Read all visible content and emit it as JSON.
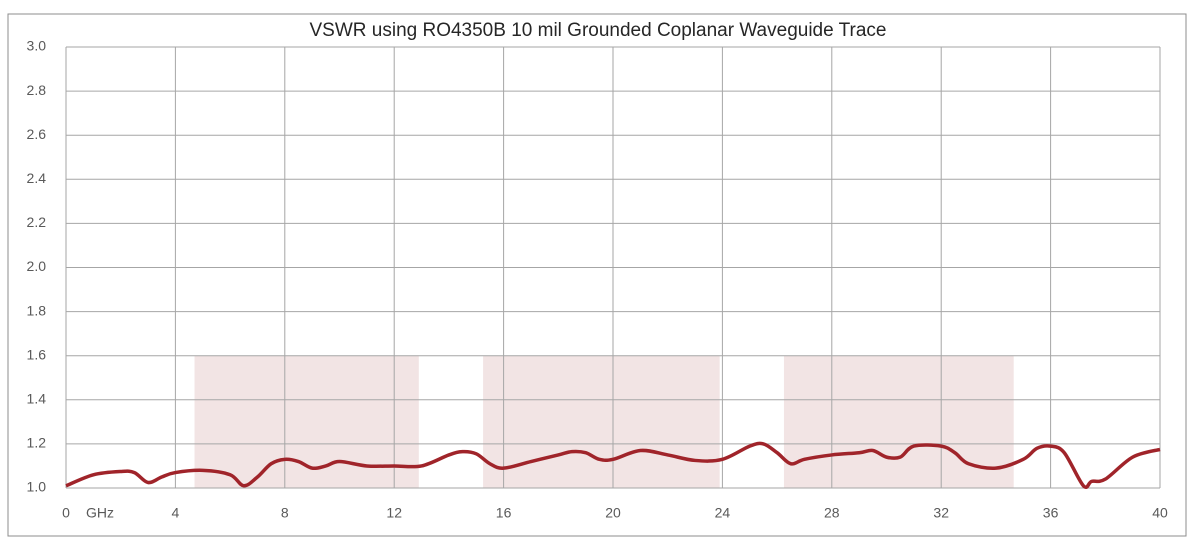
{
  "chart_data": {
    "type": "line",
    "title": "VSWR using RO4350B 10 mil Grounded Coplanar Waveguide Trace",
    "x_unit": "GHz",
    "xlim": [
      0,
      40
    ],
    "xticks": [
      0,
      4,
      8,
      12,
      16,
      20,
      24,
      28,
      32,
      36,
      40
    ],
    "ylim": [
      1,
      3
    ],
    "yticks": [
      {
        "value": 1,
        "label": "1.0"
      },
      1.2,
      1.4,
      1.6,
      1.8,
      {
        "value": 2,
        "label": "2.0"
      },
      2.2,
      2.4,
      2.6,
      2.8,
      {
        "value": 3,
        "label": "3.0"
      }
    ],
    "grid": true,
    "bands": {
      "color": "#f2e4e4",
      "top": 1.6,
      "ranges": [
        [
          4.7,
          12.9
        ],
        [
          15.25,
          23.9
        ],
        [
          26.25,
          34.65
        ]
      ]
    },
    "series": [
      {
        "color": "#a0242a",
        "x": [
          0,
          1,
          2,
          2.5,
          3,
          3.5,
          4,
          5,
          6,
          6.5,
          7,
          7.5,
          8,
          8.5,
          9,
          9.5,
          10,
          11,
          12,
          13,
          14,
          14.5,
          15,
          15.5,
          16,
          17,
          18,
          18.5,
          19,
          19.5,
          20,
          21,
          22,
          23,
          24,
          25,
          25.5,
          26,
          26.5,
          27,
          28,
          29,
          29.5,
          30,
          30.5,
          31,
          32,
          32.5,
          33,
          34,
          35,
          35.5,
          36,
          36.5,
          37.2,
          37.5,
          38,
          39,
          40
        ],
        "values": [
          1.01,
          1.06,
          1.075,
          1.07,
          1.025,
          1.05,
          1.07,
          1.08,
          1.06,
          1.01,
          1.05,
          1.11,
          1.13,
          1.12,
          1.09,
          1.1,
          1.12,
          1.1,
          1.1,
          1.1,
          1.15,
          1.165,
          1.155,
          1.11,
          1.09,
          1.12,
          1.15,
          1.165,
          1.16,
          1.13,
          1.13,
          1.17,
          1.15,
          1.125,
          1.13,
          1.19,
          1.2,
          1.16,
          1.11,
          1.13,
          1.15,
          1.16,
          1.17,
          1.14,
          1.14,
          1.19,
          1.19,
          1.16,
          1.11,
          1.09,
          1.13,
          1.18,
          1.19,
          1.16,
          1.01,
          1.03,
          1.04,
          1.14,
          1.175
        ]
      }
    ]
  }
}
